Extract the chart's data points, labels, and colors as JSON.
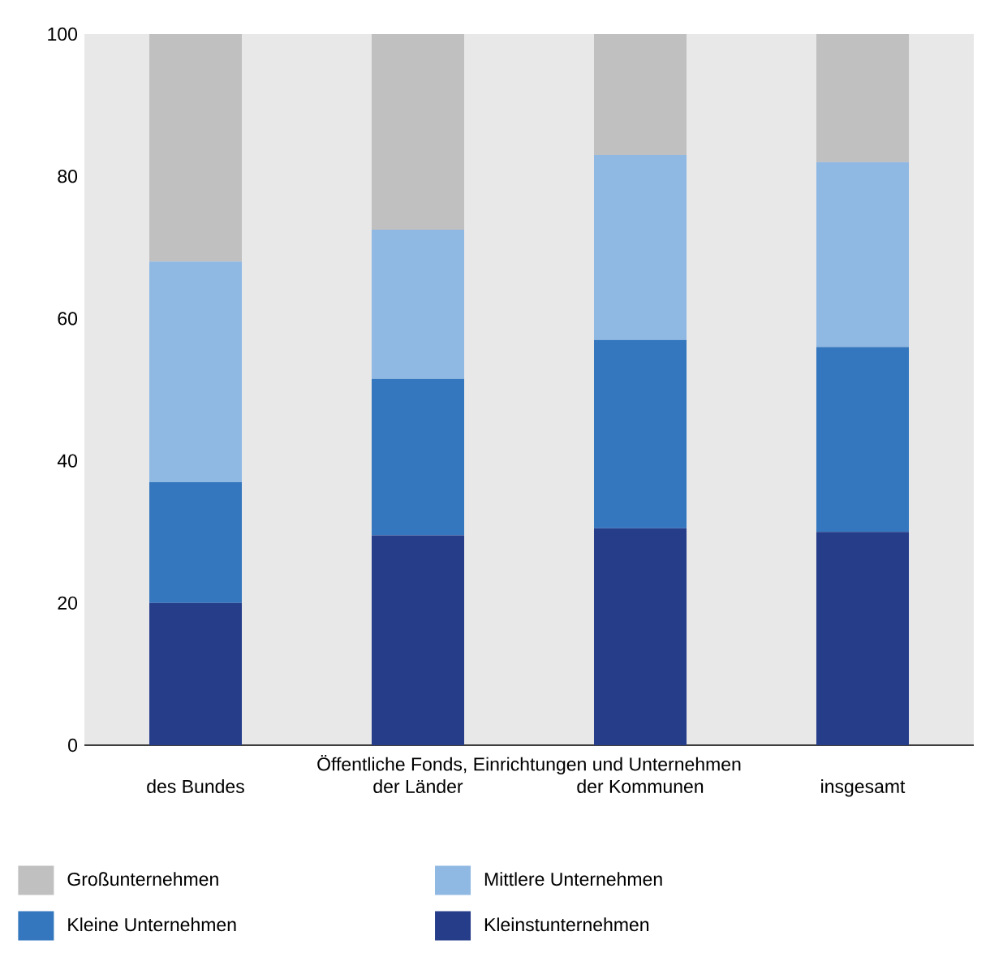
{
  "chart_data": {
    "type": "bar",
    "stacked": true,
    "xlabel": "Öffentliche Fonds, Einrichtungen und Unternehmen",
    "categories": [
      "des Bundes",
      "der Länder",
      "der Kommunen",
      "insgesamt"
    ],
    "series": [
      {
        "name": "Kleinstunternehmen",
        "color": "#263d8a",
        "values": [
          20,
          29.5,
          30.5,
          30
        ]
      },
      {
        "name": "Kleine Unternehmen",
        "color": "#3477be",
        "values": [
          17,
          22,
          26.5,
          26
        ]
      },
      {
        "name": "Mittlere Unternehmen",
        "color": "#8fb8e3",
        "values": [
          31,
          21,
          26,
          26
        ]
      },
      {
        "name": "Großunternehmen",
        "color": "#c0c0c0",
        "values": [
          32,
          27.5,
          17,
          18
        ]
      }
    ],
    "ylim": [
      0,
      100
    ],
    "yticks": [
      0,
      20,
      40,
      60,
      80,
      100
    ],
    "legend": "bottom"
  }
}
